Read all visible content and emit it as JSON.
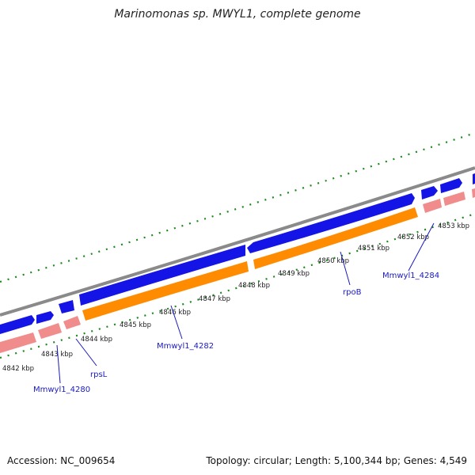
{
  "title": "Marinomonas sp. MWYL1, complete genome",
  "footer": {
    "accession": "Accession: NC_009654",
    "summary": "Topology: circular; Length: 5,100,344 bp; Genes: 4,549"
  },
  "colors": {
    "backbone": "#8a8a8a",
    "forward_gene": "#1414e6",
    "reverse_gene": "#f08c8c",
    "rrna_or_cds_orange": "#ff8c00",
    "tick": "#1a8a1a",
    "gene_label": "#1a1ac0"
  },
  "scale_ticks": [
    "4842 kbp",
    "4843 kbp",
    "4844 kbp",
    "4845 kbp",
    "4846 kbp",
    "4847 kbp",
    "4848 kbp",
    "4849 kbp",
    "4850 kbp",
    "4851 kbp",
    "4852 kbp",
    "4853 kbp"
  ],
  "gene_labels": [
    "Mmwyl1_4280",
    "rpsL",
    "Mmwyl1_4282",
    "rpoB",
    "Mmwyl1_4284"
  ]
}
